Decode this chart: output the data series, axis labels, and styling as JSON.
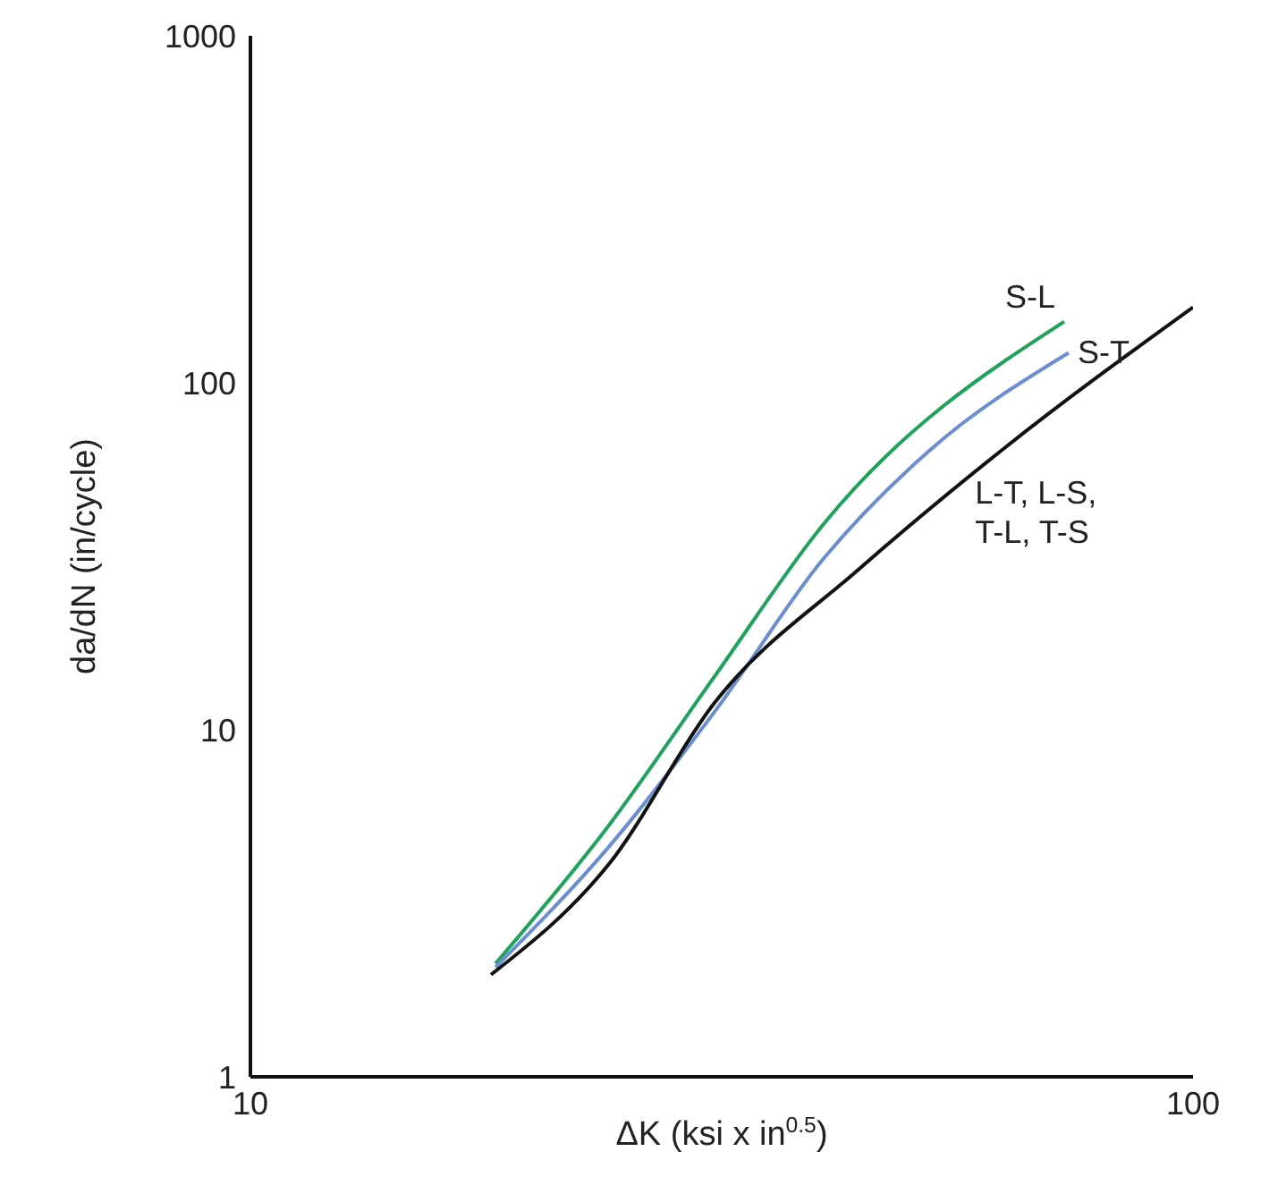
{
  "chart_data": {
    "type": "line",
    "xlabel": "ΔK (ksi x in$^{0.5}$)",
    "ylabel": "da/dN (in/cycle)",
    "log": "xy",
    "xlim": [
      10,
      100
    ],
    "xticks": [
      10,
      100
    ],
    "ylim": [
      1,
      1000
    ],
    "yticks": [
      1,
      10,
      100,
      1000
    ],
    "marker": "none",
    "series": [
      {
        "name": "S-L",
        "color": "#1fa35a",
        "x": [
          18.2,
          24,
          31.1,
          40.5,
          73
        ],
        "values": [
          2.12,
          5.3,
          14.3,
          39,
          150
        ]
      },
      {
        "name": "S-T",
        "color": "#6a8ed0",
        "x": [
          18.2,
          24,
          31.1,
          40.5,
          52.6,
          73.8
        ],
        "values": [
          2.07,
          4.6,
          11.3,
          31,
          64,
          122
        ]
      },
      {
        "name": "L-T, L-S, T-L, T-S",
        "color": "#111111",
        "x": [
          18,
          24,
          31.1,
          44.2,
          62.7,
          100
        ],
        "values": [
          1.97,
          4.1,
          12,
          29,
          64,
          165
        ]
      }
    ]
  }
}
